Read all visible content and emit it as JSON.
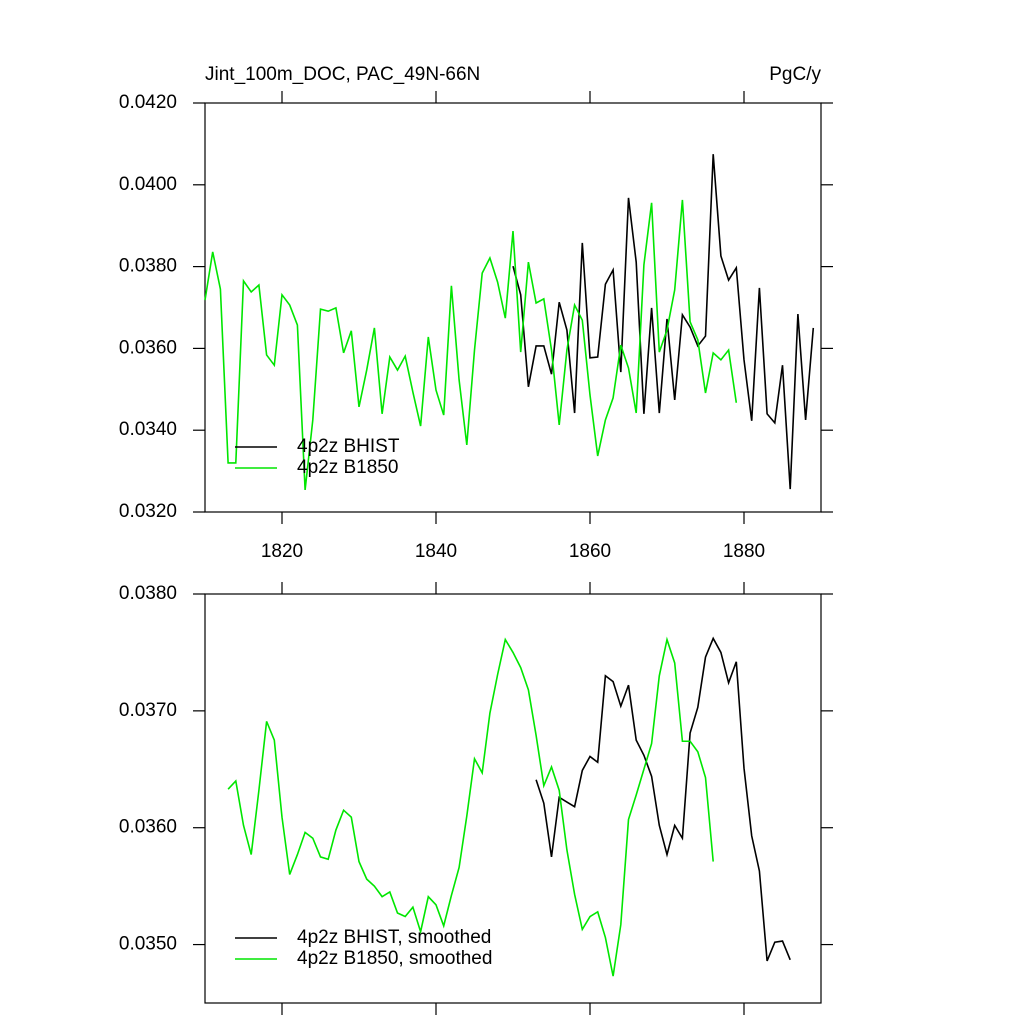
{
  "chart_data": [
    {
      "type": "line",
      "title": "Jint_100m_DOC, PAC_49N-66N",
      "units": "PgC/y",
      "xlim": [
        1810,
        1890
      ],
      "xticks": [
        1820,
        1840,
        1860,
        1880
      ],
      "xtick_labels": true,
      "ylim": [
        0.032,
        0.042
      ],
      "yticks": [
        {
          "value": 0.032,
          "label": "0.0320"
        },
        {
          "value": 0.034,
          "label": "0.0340"
        },
        {
          "value": 0.036,
          "label": "0.0360"
        },
        {
          "value": 0.038,
          "label": "0.0380"
        },
        {
          "value": 0.04,
          "label": "0.0400"
        },
        {
          "value": 0.042,
          "label": "0.0420"
        }
      ],
      "legend": "lower left",
      "series": [
        {
          "name": "4p2z BHIST",
          "color": "#000000",
          "x": [
            1850,
            1851,
            1852,
            1853,
            1854,
            1855,
            1856,
            1857,
            1858,
            1859,
            1860,
            1861,
            1862,
            1863,
            1864,
            1865,
            1866,
            1867,
            1868,
            1869,
            1870,
            1871,
            1872,
            1873,
            1874,
            1875,
            1876,
            1877,
            1878,
            1879,
            1880,
            1881,
            1882,
            1883,
            1884,
            1885,
            1886,
            1887,
            1888,
            1889
          ],
          "values": [
            0.03801,
            0.03731,
            0.03506,
            0.03606,
            0.03606,
            0.03537,
            0.03713,
            0.03645,
            0.03442,
            0.03858,
            0.03577,
            0.03579,
            0.03757,
            0.03792,
            0.03542,
            0.03968,
            0.03811,
            0.0344,
            0.03699,
            0.03442,
            0.03672,
            0.03474,
            0.03682,
            0.03652,
            0.03606,
            0.0363,
            0.04075,
            0.03826,
            0.03767,
            0.03797,
            0.03572,
            0.03423,
            0.03748,
            0.0344,
            0.03418,
            0.03559,
            0.03256,
            0.03684,
            0.03425,
            0.0365
          ]
        },
        {
          "name": "4p2z B1850",
          "color": "#00e600",
          "x": [
            1810,
            1811,
            1812,
            1813,
            1814,
            1815,
            1816,
            1817,
            1818,
            1819,
            1820,
            1821,
            1822,
            1823,
            1824,
            1825,
            1826,
            1827,
            1828,
            1829,
            1830,
            1831,
            1832,
            1833,
            1834,
            1835,
            1836,
            1837,
            1838,
            1839,
            1840,
            1841,
            1842,
            1843,
            1844,
            1845,
            1846,
            1847,
            1848,
            1849,
            1850,
            1851,
            1852,
            1853,
            1854,
            1855,
            1856,
            1857,
            1858,
            1859,
            1860,
            1861,
            1862,
            1863,
            1864,
            1865,
            1866,
            1867,
            1868,
            1869,
            1870,
            1871,
            1872,
            1873,
            1874,
            1875,
            1876,
            1877,
            1878,
            1879
          ],
          "values": [
            0.03718,
            0.03836,
            0.03745,
            0.0332,
            0.0332,
            0.03765,
            0.03738,
            0.03755,
            0.03584,
            0.03559,
            0.03731,
            0.03706,
            0.03657,
            0.03254,
            0.03425,
            0.03696,
            0.03691,
            0.03699,
            0.03589,
            0.03643,
            0.03457,
            0.03547,
            0.0365,
            0.0344,
            0.03579,
            0.03547,
            0.03581,
            0.03493,
            0.0341,
            0.03628,
            0.03498,
            0.03437,
            0.03753,
            0.03523,
            0.03364,
            0.03596,
            0.03784,
            0.03821,
            0.03762,
            0.03674,
            0.03887,
            0.03591,
            0.03811,
            0.03711,
            0.03721,
            0.03596,
            0.03413,
            0.03596,
            0.03706,
            0.03669,
            0.03486,
            0.03337,
            0.03425,
            0.03479,
            0.03608,
            0.03552,
            0.03442,
            0.03804,
            0.03956,
            0.03591,
            0.03645,
            0.03743,
            0.03963,
            0.03665,
            0.03621,
            0.03491,
            0.03589,
            0.03572,
            0.03596,
            0.03467
          ]
        }
      ]
    },
    {
      "type": "line",
      "xlim": [
        1810,
        1890
      ],
      "xticks": [
        1820,
        1840,
        1860,
        1880
      ],
      "xtick_labels": false,
      "ylim": [
        0.0345,
        0.038
      ],
      "yticks": [
        {
          "value": 0.035,
          "label": "0.0350"
        },
        {
          "value": 0.036,
          "label": "0.0360"
        },
        {
          "value": 0.037,
          "label": "0.0370"
        },
        {
          "value": 0.038,
          "label": "0.0380"
        }
      ],
      "legend": "lower left",
      "series": [
        {
          "name": "4p2z BHIST, smoothed",
          "color": "#000000",
          "x": [
            1853,
            1854,
            1855,
            1856,
            1857,
            1858,
            1859,
            1860,
            1861,
            1862,
            1863,
            1864,
            1865,
            1866,
            1867,
            1868,
            1869,
            1870,
            1871,
            1872,
            1873,
            1874,
            1875,
            1876,
            1877,
            1878,
            1879,
            1880,
            1881,
            1882,
            1883,
            1884,
            1885,
            1886
          ],
          "values": [
            0.03641,
            0.03621,
            0.03575,
            0.03626,
            0.03622,
            0.03618,
            0.03649,
            0.03661,
            0.03656,
            0.0373,
            0.03725,
            0.03704,
            0.03722,
            0.03675,
            0.03662,
            0.03644,
            0.03602,
            0.03577,
            0.03602,
            0.03591,
            0.03681,
            0.03703,
            0.03746,
            0.03762,
            0.0375,
            0.03724,
            0.03742,
            0.03651,
            0.03593,
            0.03563,
            0.03486,
            0.03502,
            0.03503,
            0.03487
          ]
        },
        {
          "name": "4p2z B1850, smoothed",
          "color": "#00e600",
          "x": [
            1813,
            1814,
            1815,
            1816,
            1817,
            1818,
            1819,
            1820,
            1821,
            1822,
            1823,
            1824,
            1825,
            1826,
            1827,
            1828,
            1829,
            1830,
            1831,
            1832,
            1833,
            1834,
            1835,
            1836,
            1837,
            1838,
            1839,
            1840,
            1841,
            1842,
            1843,
            1844,
            1845,
            1846,
            1847,
            1848,
            1849,
            1850,
            1851,
            1852,
            1853,
            1854,
            1855,
            1856,
            1857,
            1858,
            1859,
            1860,
            1861,
            1862,
            1863,
            1864,
            1865,
            1866,
            1867,
            1868,
            1869,
            1870,
            1871,
            1872,
            1873,
            1874,
            1875,
            1876
          ],
          "values": [
            0.03633,
            0.0364,
            0.03602,
            0.03577,
            0.03632,
            0.03691,
            0.03675,
            0.03609,
            0.0356,
            0.03577,
            0.03596,
            0.03591,
            0.03575,
            0.03573,
            0.03598,
            0.03615,
            0.03609,
            0.03571,
            0.03556,
            0.0355,
            0.03541,
            0.03545,
            0.03527,
            0.03524,
            0.03532,
            0.03511,
            0.03541,
            0.03534,
            0.03516,
            0.03542,
            0.03566,
            0.0361,
            0.03659,
            0.03647,
            0.03698,
            0.03731,
            0.03761,
            0.0375,
            0.03737,
            0.03718,
            0.03679,
            0.03636,
            0.03652,
            0.03632,
            0.03581,
            0.03543,
            0.03513,
            0.03524,
            0.03528,
            0.03506,
            0.03473,
            0.03517,
            0.03607,
            0.03628,
            0.0365,
            0.03672,
            0.0373,
            0.03761,
            0.03741,
            0.03674,
            0.03674,
            0.03665,
            0.03643,
            0.03571
          ]
        }
      ]
    }
  ]
}
